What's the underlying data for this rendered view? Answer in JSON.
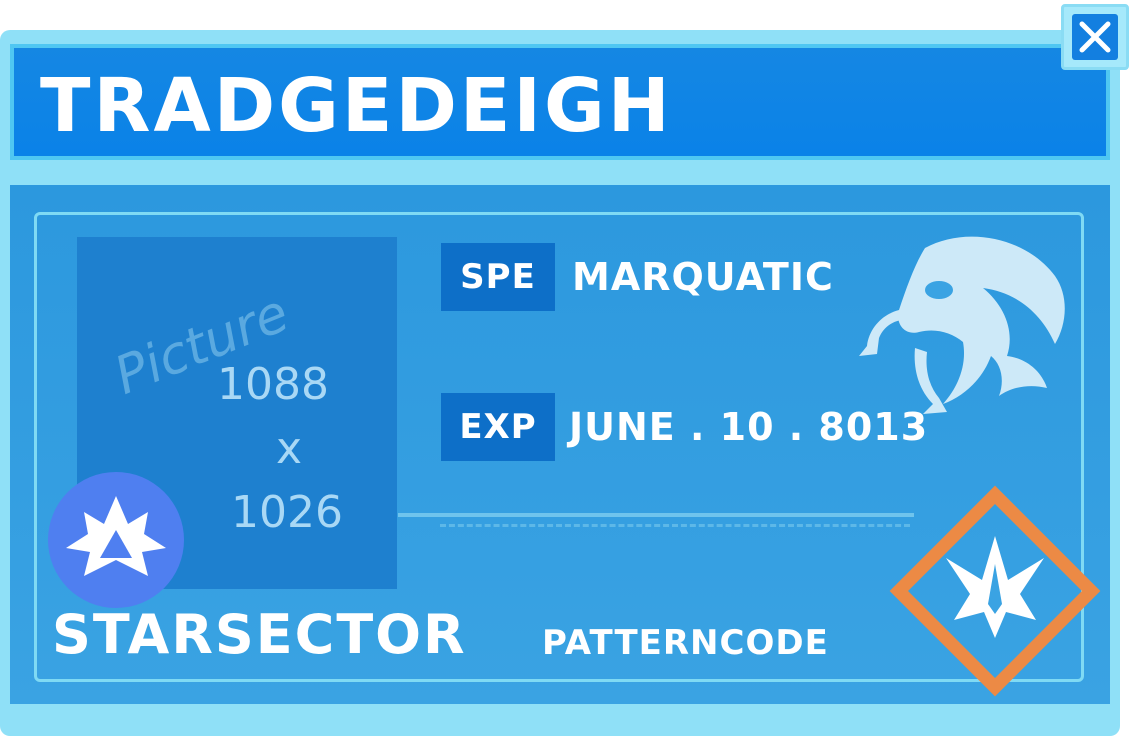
{
  "header": {
    "title": "TRADGEDEIGH"
  },
  "close_button": {
    "icon": "close-icon"
  },
  "picture_placeholder": {
    "label": "Picture",
    "width": "1088",
    "times": "x",
    "height": "1026"
  },
  "fields": {
    "species": {
      "label": "SPE",
      "value": "MARQUATIC"
    },
    "expiry": {
      "label": "EXP",
      "value": "JUNE . 10 . 8013"
    }
  },
  "sector": {
    "name": "STARSECTOR",
    "icon": "sector-emblem-icon"
  },
  "pattern": {
    "label": "PATTERNCODE",
    "icon": "star-ship-emblem-icon"
  },
  "species_icon": "sea-creature-icon",
  "colors": {
    "header_blue": "#0a82e8",
    "body_blue": "#3aa3e3",
    "frame_cyan": "#8fe0f7",
    "badge_blue": "#0d6fc8",
    "sector_circle": "#4f7ff0",
    "pattern_orange": "#ec8a45"
  }
}
